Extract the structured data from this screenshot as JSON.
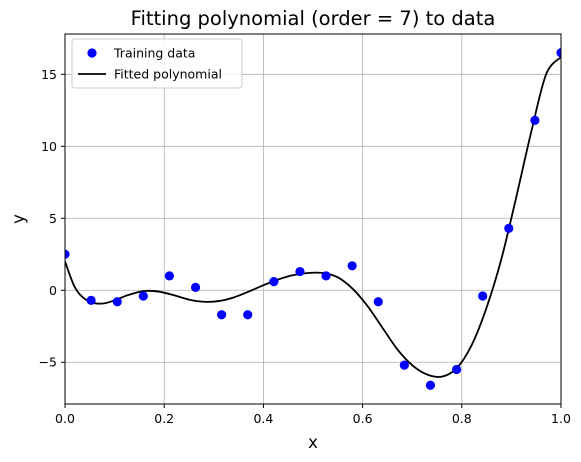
{
  "chart_data": {
    "type": "scatter",
    "title": "Fitting polynomial (order = 7) to data",
    "xlabel": "x",
    "ylabel": "y",
    "xlim": [
      0.0,
      1.0
    ],
    "ylim": [
      -7.9,
      17.8
    ],
    "xticks": [
      0.0,
      0.2,
      0.4,
      0.6,
      0.8,
      1.0
    ],
    "xtick_labels": [
      "0.0",
      "0.2",
      "0.4",
      "0.6",
      "0.8",
      "1.0"
    ],
    "yticks": [
      -5,
      0,
      5,
      10,
      15
    ],
    "ytick_labels": [
      "−5",
      "0",
      "5",
      "10",
      "15"
    ],
    "grid": true,
    "legend_position": "top-left",
    "series": [
      {
        "name": "Training data",
        "kind": "scatter",
        "color": "#0000ff",
        "x": [
          0.0,
          0.0526,
          0.1053,
          0.1579,
          0.2105,
          0.2632,
          0.3158,
          0.3684,
          0.4211,
          0.4737,
          0.5263,
          0.5789,
          0.6316,
          0.6842,
          0.7368,
          0.7895,
          0.8421,
          0.8947,
          0.9474,
          1.0
        ],
        "y": [
          2.5,
          -0.7,
          -0.8,
          -0.4,
          1.0,
          0.2,
          -1.7,
          -1.7,
          0.6,
          1.3,
          1.0,
          1.7,
          -0.8,
          -5.2,
          -6.6,
          -5.5,
          -0.4,
          4.3,
          11.8,
          16.5
        ]
      },
      {
        "name": "Fitted polynomial",
        "kind": "line",
        "color": "#000000",
        "x": [
          0.0,
          0.02,
          0.04,
          0.06,
          0.08,
          0.1,
          0.13,
          0.16,
          0.19,
          0.22,
          0.25,
          0.28,
          0.31,
          0.34,
          0.37,
          0.4,
          0.43,
          0.46,
          0.49,
          0.52,
          0.55,
          0.58,
          0.61,
          0.64,
          0.67,
          0.7,
          0.73,
          0.76,
          0.79,
          0.82,
          0.85,
          0.88,
          0.91,
          0.94,
          0.97,
          1.0
        ],
        "y": [
          2.0,
          0.2,
          -0.6,
          -0.9,
          -0.9,
          -0.7,
          -0.3,
          -0.05,
          -0.1,
          -0.35,
          -0.65,
          -0.8,
          -0.75,
          -0.5,
          -0.1,
          0.35,
          0.75,
          1.05,
          1.2,
          1.2,
          0.9,
          0.1,
          -1.1,
          -2.6,
          -4.1,
          -5.2,
          -5.85,
          -6.0,
          -5.4,
          -3.8,
          -1.2,
          2.2,
          6.5,
          11.0,
          15.0,
          16.2
        ]
      }
    ]
  }
}
